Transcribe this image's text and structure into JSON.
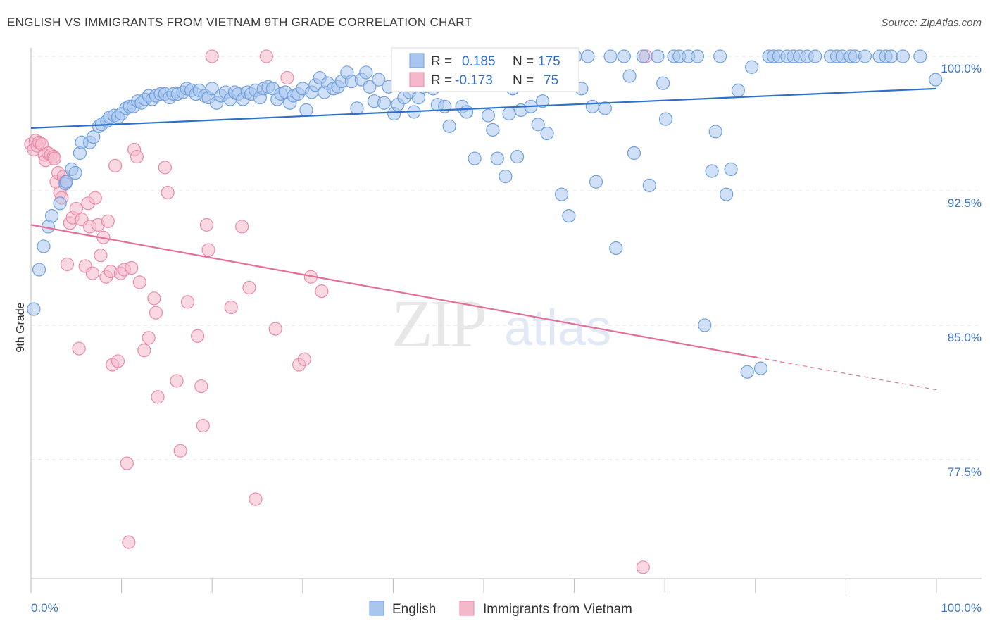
{
  "header": {
    "title": "ENGLISH VS IMMIGRANTS FROM VIETNAM 9TH GRADE CORRELATION CHART",
    "source": "Source: ZipAtlas.com"
  },
  "legend_box": {
    "row1": {
      "r_label": "R =",
      "r_value": "0.185",
      "n_label": "N =",
      "n_value": "175"
    },
    "row2": {
      "r_label": "R =",
      "r_value": "-0.173",
      "n_label": "N =",
      "n_value": "75"
    }
  },
  "colors": {
    "blue_fill": "#a9c6ee",
    "blue_stroke": "#6f9fde",
    "blue_line": "#2f6fcc",
    "pink_fill": "#f5b8cb",
    "pink_stroke": "#ea8aa8",
    "pink_line": "#e36e98",
    "tick_text": "#3b73c4",
    "grid": "#e2e2e2"
  },
  "chart_data": {
    "type": "scatter",
    "title": "ENGLISH VS IMMIGRANTS FROM VIETNAM 9TH GRADE CORRELATION CHART",
    "xlabel": "",
    "ylabel": "9th Grade",
    "xlim": [
      0,
      100
    ],
    "ylim": [
      71.0,
      101.0
    ],
    "x_tick_labels": [
      "0.0%",
      "100.0%"
    ],
    "y_ticks": [
      77.5,
      85.0,
      92.5,
      100.0
    ],
    "y_tick_labels": [
      "77.5%",
      "85.0%",
      "92.5%",
      "100.0%"
    ],
    "grid": true,
    "legend_position": "bottom",
    "series": [
      {
        "name": "English",
        "color": "#a9c6ee",
        "trend": {
          "x": [
            0,
            100
          ],
          "y": [
            96.0,
            98.2
          ]
        },
        "points": [
          [
            0.3,
            85.9
          ],
          [
            0.9,
            88.1
          ],
          [
            1.4,
            89.4
          ],
          [
            1.9,
            90.5
          ],
          [
            2.3,
            91.1
          ],
          [
            3.2,
            91.8
          ],
          [
            3.8,
            92.9
          ],
          [
            3.9,
            93.0
          ],
          [
            4.5,
            93.7
          ],
          [
            4.9,
            93.5
          ],
          [
            5.4,
            94.6
          ],
          [
            5.6,
            95.2
          ],
          [
            6.5,
            95.2
          ],
          [
            6.9,
            95.5
          ],
          [
            7.5,
            96.1
          ],
          [
            7.8,
            96.2
          ],
          [
            8.4,
            96.4
          ],
          [
            8.7,
            96.6
          ],
          [
            9.2,
            96.7
          ],
          [
            9.6,
            96.6
          ],
          [
            10.0,
            96.8
          ],
          [
            10.5,
            97.1
          ],
          [
            10.9,
            97.2
          ],
          [
            11.3,
            97.2
          ],
          [
            11.8,
            97.5
          ],
          [
            12.2,
            97.4
          ],
          [
            12.6,
            97.6
          ],
          [
            13.0,
            97.8
          ],
          [
            13.4,
            97.6
          ],
          [
            13.8,
            97.8
          ],
          [
            14.3,
            97.9
          ],
          [
            14.8,
            97.9
          ],
          [
            15.3,
            97.7
          ],
          [
            15.7,
            97.9
          ],
          [
            16.2,
            97.9
          ],
          [
            16.8,
            98.0
          ],
          [
            17.2,
            98.2
          ],
          [
            17.7,
            98.1
          ],
          [
            18.2,
            97.9
          ],
          [
            18.6,
            98.1
          ],
          [
            19.2,
            97.8
          ],
          [
            19.6,
            97.7
          ],
          [
            20.0,
            98.2
          ],
          [
            20.5,
            97.4
          ],
          [
            21.0,
            97.8
          ],
          [
            21.5,
            98.0
          ],
          [
            22.0,
            97.6
          ],
          [
            22.5,
            98.0
          ],
          [
            22.9,
            97.9
          ],
          [
            23.4,
            97.6
          ],
          [
            23.9,
            98.0
          ],
          [
            24.3,
            97.9
          ],
          [
            24.8,
            98.1
          ],
          [
            25.3,
            97.7
          ],
          [
            25.7,
            98.2
          ],
          [
            26.2,
            98.3
          ],
          [
            26.7,
            98.2
          ],
          [
            27.2,
            97.6
          ],
          [
            27.6,
            97.9
          ],
          [
            28.1,
            98.0
          ],
          [
            28.6,
            97.4
          ],
          [
            29.0,
            97.8
          ],
          [
            29.5,
            97.9
          ],
          [
            30.0,
            98.2
          ],
          [
            30.4,
            97.0
          ],
          [
            31.0,
            98.0
          ],
          [
            31.4,
            98.4
          ],
          [
            31.9,
            98.8
          ],
          [
            32.4,
            98.0
          ],
          [
            32.8,
            98.5
          ],
          [
            33.4,
            98.2
          ],
          [
            33.9,
            98.3
          ],
          [
            34.3,
            98.6
          ],
          [
            34.9,
            99.1
          ],
          [
            35.4,
            98.6
          ],
          [
            36.0,
            97.1
          ],
          [
            36.5,
            98.7
          ],
          [
            37.0,
            99.1
          ],
          [
            37.4,
            98.3
          ],
          [
            37.9,
            97.5
          ],
          [
            38.4,
            98.7
          ],
          [
            39.0,
            97.4
          ],
          [
            39.5,
            98.3
          ],
          [
            40.1,
            96.8
          ],
          [
            40.5,
            97.3
          ],
          [
            41.2,
            97.7
          ],
          [
            41.8,
            98.0
          ],
          [
            42.3,
            96.9
          ],
          [
            42.8,
            97.7
          ],
          [
            43.3,
            98.3
          ],
          [
            44.4,
            98.2
          ],
          [
            44.9,
            97.3
          ],
          [
            45.2,
            99.9
          ],
          [
            45.7,
            97.2
          ],
          [
            46.2,
            96.1
          ],
          [
            46.8,
            99.2
          ],
          [
            47.6,
            97.2
          ],
          [
            48.1,
            96.9
          ],
          [
            48.6,
            99.4
          ],
          [
            49.0,
            94.3
          ],
          [
            49.5,
            98.5
          ],
          [
            50.5,
            96.7
          ],
          [
            51.0,
            95.9
          ],
          [
            51.5,
            94.3
          ],
          [
            51.9,
            98.8
          ],
          [
            52.4,
            93.3
          ],
          [
            52.8,
            96.8
          ],
          [
            53.2,
            98.2
          ],
          [
            53.7,
            94.4
          ],
          [
            54.1,
            97.0
          ],
          [
            55.2,
            97.2
          ],
          [
            56.0,
            96.2
          ],
          [
            56.5,
            97.5
          ],
          [
            57.0,
            95.7
          ],
          [
            57.8,
            100.0
          ],
          [
            58.6,
            92.3
          ],
          [
            58.9,
            98.4
          ],
          [
            59.4,
            91.1
          ],
          [
            60.1,
            100.0
          ],
          [
            60.8,
            98.2
          ],
          [
            61.5,
            100.0
          ],
          [
            62.0,
            97.2
          ],
          [
            62.4,
            93.0
          ],
          [
            63.4,
            97.1
          ],
          [
            64.0,
            100.0
          ],
          [
            64.6,
            89.3
          ],
          [
            65.5,
            100.0
          ],
          [
            66.1,
            98.9
          ],
          [
            66.6,
            94.6
          ],
          [
            67.6,
            100.0
          ],
          [
            68.3,
            92.8
          ],
          [
            69.2,
            100.0
          ],
          [
            69.8,
            98.5
          ],
          [
            70.1,
            96.5
          ],
          [
            71.0,
            100.0
          ],
          [
            71.6,
            100.0
          ],
          [
            72.6,
            100.0
          ],
          [
            73.6,
            100.0
          ],
          [
            74.4,
            85.0
          ],
          [
            75.2,
            93.6
          ],
          [
            75.6,
            95.8
          ],
          [
            76.1,
            100.0
          ],
          [
            76.8,
            92.3
          ],
          [
            77.3,
            93.7
          ],
          [
            78.1,
            98.1
          ],
          [
            79.1,
            82.4
          ],
          [
            79.6,
            99.4
          ],
          [
            80.6,
            82.6
          ],
          [
            81.5,
            100.0
          ],
          [
            82.0,
            100.0
          ],
          [
            82.6,
            100.0
          ],
          [
            83.5,
            100.0
          ],
          [
            84.2,
            100.0
          ],
          [
            84.9,
            100.0
          ],
          [
            85.7,
            100.0
          ],
          [
            86.6,
            100.0
          ],
          [
            88.3,
            100.0
          ],
          [
            89.0,
            100.0
          ],
          [
            89.6,
            100.0
          ],
          [
            90.5,
            100.0
          ],
          [
            91.0,
            100.0
          ],
          [
            92.1,
            100.0
          ],
          [
            93.7,
            100.0
          ],
          [
            94.4,
            100.0
          ],
          [
            95.0,
            100.0
          ],
          [
            96.3,
            100.0
          ],
          [
            98.2,
            100.0
          ],
          [
            99.9,
            98.7
          ]
        ]
      },
      {
        "name": "Immigrants from Vietnam",
        "color": "#f5b8cb",
        "trend": {
          "x": [
            0,
            80.2
          ],
          "y": [
            90.6,
            83.2
          ],
          "dashed_to": {
            "x": 100,
            "y": 81.4
          }
        },
        "points": [
          [
            0.0,
            95.1
          ],
          [
            0.3,
            94.8
          ],
          [
            0.5,
            95.3
          ],
          [
            0.7,
            95.0
          ],
          [
            0.9,
            95.2
          ],
          [
            1.2,
            95.1
          ],
          [
            1.5,
            94.5
          ],
          [
            1.6,
            94.2
          ],
          [
            1.9,
            94.6
          ],
          [
            2.2,
            94.5
          ],
          [
            2.5,
            94.4
          ],
          [
            2.6,
            94.3
          ],
          [
            2.8,
            93.0
          ],
          [
            3.0,
            93.5
          ],
          [
            3.2,
            92.4
          ],
          [
            3.4,
            92.1
          ],
          [
            3.6,
            93.3
          ],
          [
            3.8,
            93.0
          ],
          [
            4.0,
            88.4
          ],
          [
            4.3,
            90.7
          ],
          [
            4.6,
            91.0
          ],
          [
            5.0,
            91.5
          ],
          [
            5.3,
            83.7
          ],
          [
            5.6,
            90.9
          ],
          [
            6.0,
            88.3
          ],
          [
            6.3,
            91.8
          ],
          [
            6.5,
            90.5
          ],
          [
            6.8,
            87.9
          ],
          [
            7.1,
            92.1
          ],
          [
            7.4,
            90.6
          ],
          [
            7.7,
            88.9
          ],
          [
            8.0,
            89.9
          ],
          [
            8.3,
            87.7
          ],
          [
            8.5,
            90.8
          ],
          [
            8.8,
            88.0
          ],
          [
            9.0,
            82.8
          ],
          [
            9.3,
            93.9
          ],
          [
            9.6,
            83.0
          ],
          [
            9.9,
            87.9
          ],
          [
            10.3,
            88.1
          ],
          [
            10.6,
            77.3
          ],
          [
            10.8,
            72.9
          ],
          [
            11.1,
            88.2
          ],
          [
            11.4,
            94.8
          ],
          [
            11.7,
            94.4
          ],
          [
            12.0,
            87.4
          ],
          [
            12.5,
            83.6
          ],
          [
            13.0,
            84.3
          ],
          [
            13.6,
            86.5
          ],
          [
            13.8,
            85.7
          ],
          [
            14.0,
            81.0
          ],
          [
            14.8,
            93.8
          ],
          [
            15.1,
            92.4
          ],
          [
            16.1,
            81.9
          ],
          [
            16.5,
            78.0
          ],
          [
            17.3,
            86.3
          ],
          [
            18.4,
            84.4
          ],
          [
            18.8,
            81.6
          ],
          [
            19.0,
            79.4
          ],
          [
            19.4,
            90.6
          ],
          [
            19.6,
            89.2
          ],
          [
            20.0,
            100.0
          ],
          [
            22.1,
            86.0
          ],
          [
            23.3,
            90.5
          ],
          [
            24.1,
            87.1
          ],
          [
            24.8,
            75.3
          ],
          [
            26.0,
            100.0
          ],
          [
            27.0,
            84.8
          ],
          [
            28.3,
            98.8
          ],
          [
            29.6,
            82.8
          ],
          [
            30.2,
            83.1
          ],
          [
            30.9,
            87.7
          ],
          [
            32.1,
            86.9
          ],
          [
            67.6,
            71.5
          ],
          [
            67.9,
            100.0
          ]
        ]
      }
    ]
  }
}
